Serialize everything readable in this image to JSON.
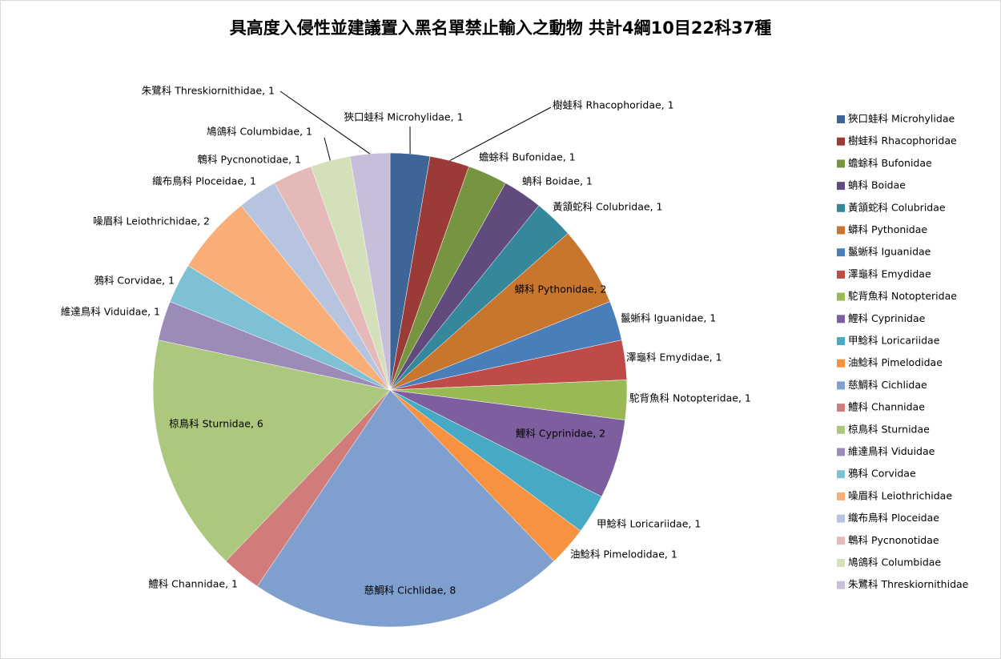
{
  "chart_data": {
    "type": "pie",
    "title": "具高度入侵性並建議置入黑名單禁止輸入之動物 共計4綱10目22科37種",
    "categories": [
      "狹口蛙科 Microhylidae",
      "樹蛙科 Rhacophoridae",
      "蟾蜍科 Bufonidae",
      "蚺科 Boidae",
      "黃頷蛇科 Colubridae",
      "蟒科 Pythonidae",
      "鬣蜥科 Iguanidae",
      "澤龜科 Emydidae",
      "駝背魚科 Notopteridae",
      "鯉科 Cyprinidae",
      "甲鯰科 Loricariidae",
      "油鯰科 Pimelodidae",
      "慈鯛科 Cichlidae",
      "鱧科 Channidae",
      "椋鳥科 Sturnidae",
      "維達鳥科 Viduidae",
      "鴉科 Corvidae",
      "噪眉科 Leiothrichidae",
      "織布鳥科 Ploceidae",
      "鵯科 Pycnonotidae",
      "鳩鴿科 Columbidae",
      "朱鷺科 Threskiornithidae"
    ],
    "values": [
      1,
      1,
      1,
      1,
      1,
      2,
      1,
      1,
      1,
      2,
      1,
      1,
      8,
      1,
      6,
      1,
      1,
      2,
      1,
      1,
      1,
      1
    ],
    "value_labels": [
      "狹口蛙科 Microhylidae, 1",
      "樹蛙科 Rhacophoridae, 1",
      "蟾蜍科 Bufonidae, 1",
      "蚺科 Boidae, 1",
      "黃頷蛇科 Colubridae, 1",
      "蟒科 Pythonidae, 2",
      "鬣蜥科 Iguanidae, 1",
      "澤龜科 Emydidae, 1",
      "駝背魚科 Notopteridae, 1",
      "鯉科 Cyprinidae, 2",
      "甲鯰科 Loricariidae, 1",
      "油鯰科 Pimelodidae, 1",
      "慈鯛科 Cichlidae, 8",
      "鱧科 Channidae, 1",
      "椋鳥科 Sturnidae, 6",
      "維達鳥科 Viduidae, 1",
      "鴉科 Corvidae, 1",
      "噪眉科 Leiothrichidae, 2",
      "織布鳥科 Ploceidae, 1",
      "鵯科 Pycnonotidae, 1",
      "鳩鴿科 Columbidae, 1",
      "朱鷺科 Threskiornithidae, 1"
    ],
    "colors": [
      "#3d6596",
      "#9b3b38",
      "#779540",
      "#614a7e",
      "#35879b",
      "#c8762e",
      "#4a7ebb",
      "#be4b48",
      "#98b954",
      "#7d5fa0",
      "#46aac5",
      "#f69240",
      "#7f9fcf",
      "#d07c7a",
      "#acc77e",
      "#9c8ab8",
      "#7fc1d4",
      "#f9ae78",
      "#b7c4e0",
      "#e4b9b8",
      "#d3e0b9",
      "#c7bed9"
    ],
    "legend": "right"
  }
}
